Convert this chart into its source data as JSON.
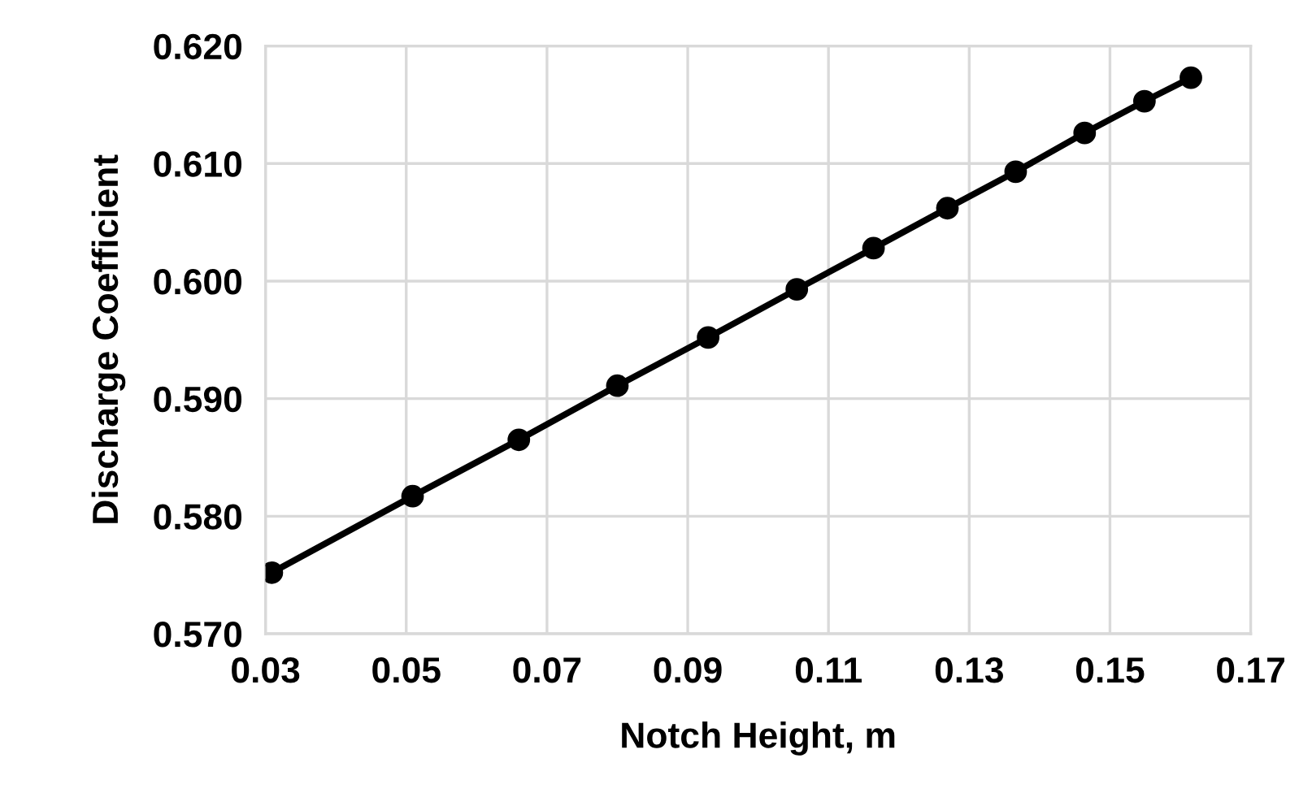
{
  "chart_data": {
    "type": "line",
    "xlabel": "Notch Height, m",
    "ylabel": "Discharge Coefficient",
    "xlim": [
      0.03,
      0.17
    ],
    "xticks": [
      {
        "value": 0.03,
        "label": "0.03"
      },
      {
        "value": 0.05,
        "label": "0.05"
      },
      {
        "value": 0.07,
        "label": "0.07"
      },
      {
        "value": 0.09,
        "label": "0.09"
      },
      {
        "value": 0.11,
        "label": "0.11"
      },
      {
        "value": 0.13,
        "label": "0.13"
      },
      {
        "value": 0.15,
        "label": "0.15"
      },
      {
        "value": 0.17,
        "label": "0.17"
      }
    ],
    "ylim": [
      0.57,
      0.62
    ],
    "yticks": [
      {
        "value": 0.57,
        "label": "0.570"
      },
      {
        "value": 0.58,
        "label": "0.580"
      },
      {
        "value": 0.59,
        "label": "0.590"
      },
      {
        "value": 0.6,
        "label": "0.600"
      },
      {
        "value": 0.61,
        "label": "0.610"
      },
      {
        "value": 0.62,
        "label": "0.620"
      }
    ],
    "grid": true,
    "marker": "circle",
    "line_style": "solid",
    "series": [
      {
        "color": "#000000",
        "x": [
          0.0309,
          0.0509,
          0.066,
          0.08,
          0.0929,
          0.1055,
          0.1164,
          0.1269,
          0.1366,
          0.1464,
          0.1549,
          0.1615
        ],
        "values": [
          0.5752,
          0.5817,
          0.5865,
          0.5911,
          0.5952,
          0.5993,
          0.6028,
          0.6062,
          0.6093,
          0.6126,
          0.6153,
          0.6173
        ]
      }
    ]
  }
}
